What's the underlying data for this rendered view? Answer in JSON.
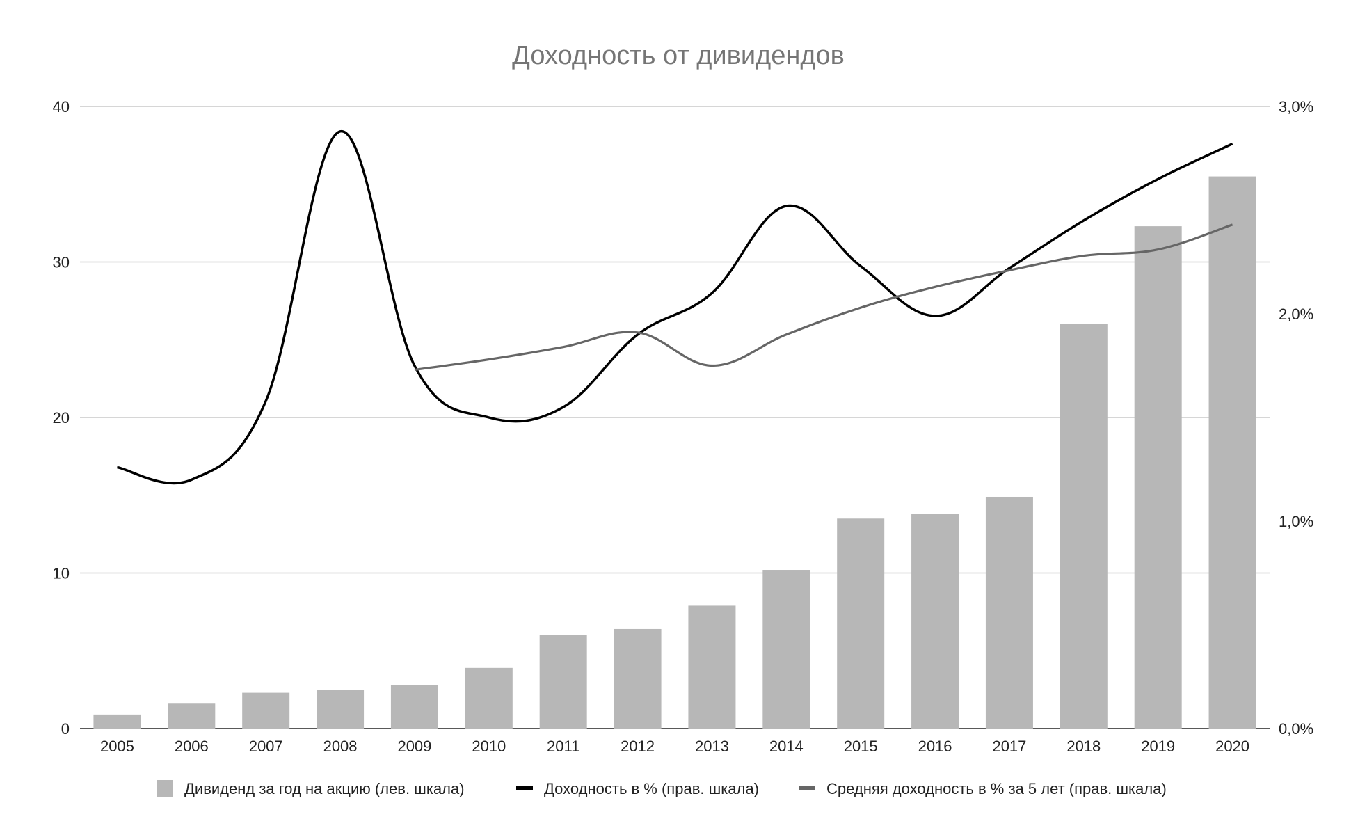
{
  "chart_data": {
    "type": "bar",
    "title": "Доходность от дивидендов",
    "categories": [
      "2005",
      "2006",
      "2007",
      "2008",
      "2009",
      "2010",
      "2011",
      "2012",
      "2013",
      "2014",
      "2015",
      "2016",
      "2017",
      "2018",
      "2019",
      "2020"
    ],
    "left_axis": {
      "ylim": [
        0,
        40
      ],
      "ticks": [
        "0",
        "10",
        "20",
        "30",
        "40"
      ],
      "tick_values": [
        0,
        10,
        20,
        30,
        40
      ]
    },
    "right_axis": {
      "ylim": [
        0,
        3.0
      ],
      "ticks": [
        "0,0%",
        "1,0%",
        "2,0%",
        "3,0%"
      ],
      "tick_values": [
        0,
        1.0,
        2.0,
        3.0
      ]
    },
    "grid": true,
    "legend_position": "bottom",
    "series": [
      {
        "name": "Дивиденд за год на акцию (лев. шкала)",
        "type": "bar",
        "axis": "left",
        "color": "#b7b7b7",
        "values": [
          0.9,
          1.6,
          2.3,
          2.5,
          2.8,
          3.9,
          6.0,
          6.4,
          7.9,
          10.2,
          13.5,
          13.8,
          14.9,
          26.0,
          32.3,
          35.5
        ]
      },
      {
        "name": "Доходность в % (прав. шкала)",
        "type": "line",
        "axis": "right",
        "color": "#000000",
        "values": [
          1.26,
          1.2,
          1.58,
          2.88,
          1.75,
          1.5,
          1.55,
          1.9,
          2.1,
          2.52,
          2.23,
          1.99,
          2.22,
          2.45,
          2.65,
          2.82
        ]
      },
      {
        "name": "Средняя доходность в % за 5 лет (прав. шкала)",
        "type": "line",
        "axis": "right",
        "color": "#666666",
        "start_index": 4,
        "values": [
          null,
          null,
          null,
          null,
          1.73,
          1.78,
          1.84,
          1.91,
          1.75,
          1.9,
          2.03,
          2.13,
          2.21,
          2.28,
          2.31,
          2.43
        ]
      }
    ]
  }
}
